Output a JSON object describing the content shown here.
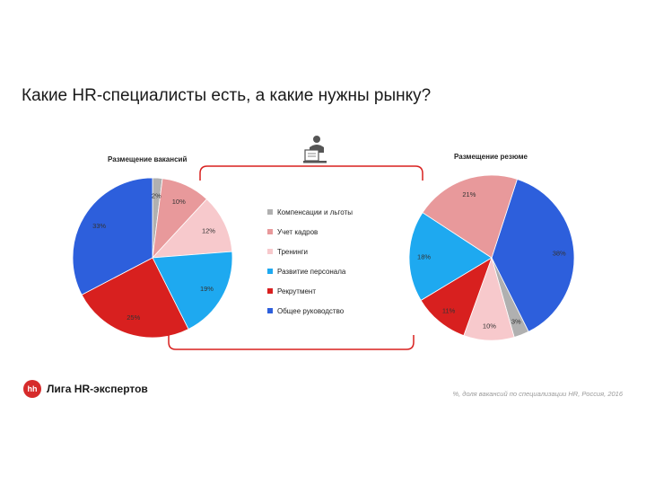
{
  "page": {
    "title": "Какие HR-специалисты есть, а какие нужны рынку?",
    "brand": "Лига HR-экспертов",
    "brand_logo": "hh",
    "footnote": "%, доля вакансий по специализации HR, Россия, 2016"
  },
  "legend": [
    {
      "label": "Компенсации и льготы",
      "color": "#b0b0b0"
    },
    {
      "label": "Учет кадров",
      "color": "#e8999b"
    },
    {
      "label": "Тренинги",
      "color": "#f7c9cc"
    },
    {
      "label": "Развитие персонала",
      "color": "#1ea9f0"
    },
    {
      "label": "Рекрутмент",
      "color": "#d8201f"
    },
    {
      "label": "Общее руководство",
      "color": "#2d5fdc"
    }
  ],
  "chart_data": [
    {
      "type": "pie",
      "title": "Размещение вакансий",
      "categories": [
        "Компенсации и льготы",
        "Учет кадров",
        "Тренинги",
        "Развитие персонала",
        "Рекрутмент",
        "Общее руководство"
      ],
      "values": [
        2,
        10,
        12,
        19,
        25,
        33
      ],
      "labels": [
        "2%",
        "10%",
        "12%",
        "19%",
        "25%",
        "33%"
      ],
      "colors": [
        "#b0b0b0",
        "#e8999b",
        "#f7c9cc",
        "#1ea9f0",
        "#d8201f",
        "#2d5fdc"
      ]
    },
    {
      "type": "pie",
      "title": "Размещение резюме",
      "categories": [
        "Общее руководство",
        "Компенсации и льготы",
        "Тренинги",
        "Рекрутмент",
        "Развитие персонала",
        "Учет кадров"
      ],
      "values": [
        38,
        3,
        10,
        11,
        18,
        21
      ],
      "labels": [
        "38%",
        "3%",
        "10%",
        "11%",
        "18%",
        "21%"
      ],
      "colors": [
        "#2d5fdc",
        "#b0b0b0",
        "#f7c9cc",
        "#d8201f",
        "#1ea9f0",
        "#e8999b"
      ]
    }
  ]
}
